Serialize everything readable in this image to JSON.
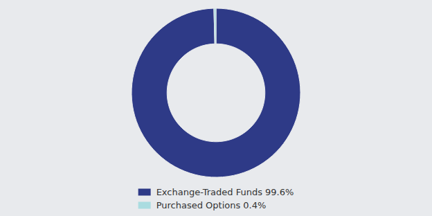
{
  "chart_data": {
    "type": "donut",
    "categories": [
      "Exchange-Traded Funds 99.6%",
      "Purchased Options 0.4%"
    ],
    "values": [
      99.6,
      0.4
    ],
    "colors": [
      "#2e3a87",
      "#aadce0"
    ],
    "legend": "bottom"
  }
}
